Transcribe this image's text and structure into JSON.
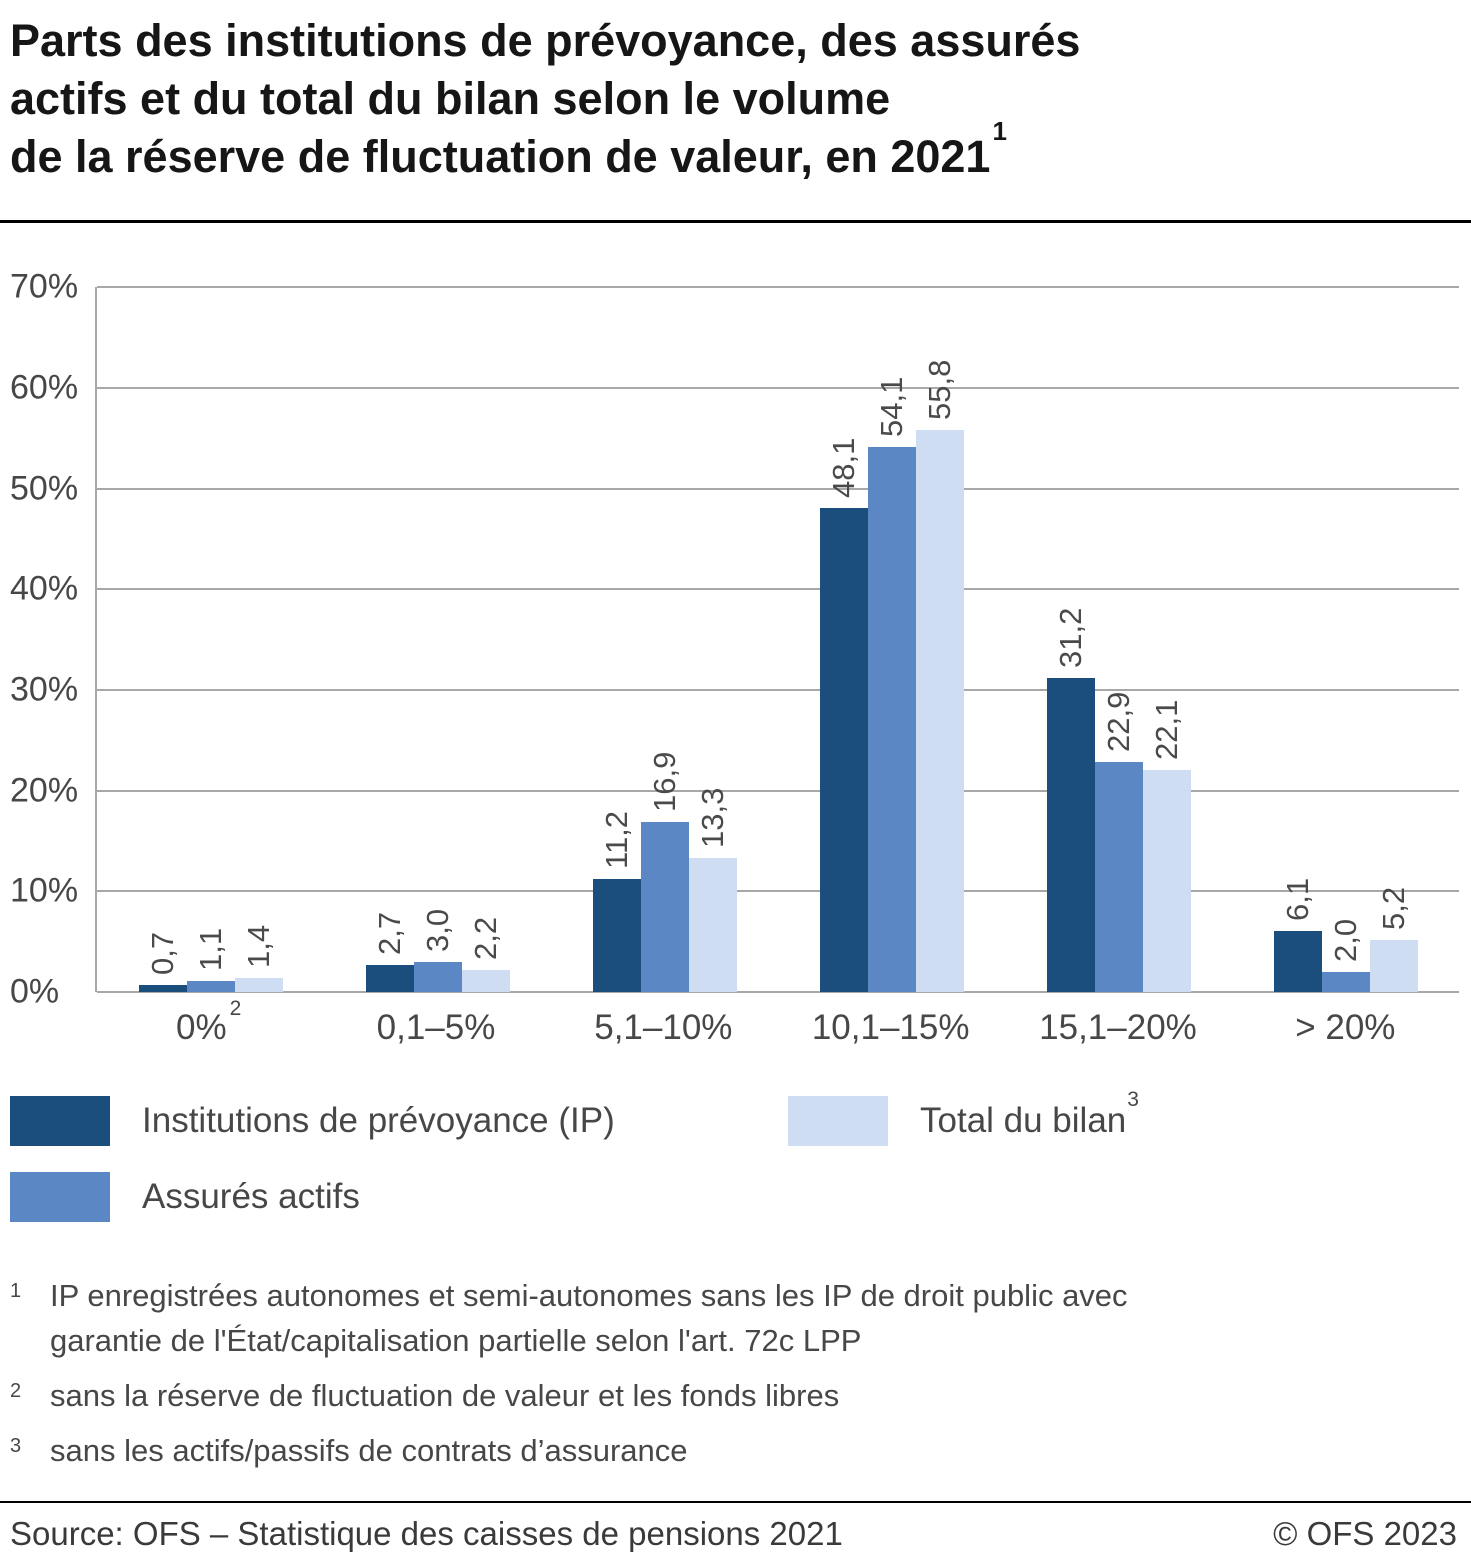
{
  "title": {
    "lines": [
      "Parts des institutions de prévoyance, des assurés",
      "actifs et du total du bilan selon le volume",
      "de la réserve de fluctuation de valeur, en 2021"
    ],
    "superscript": "1"
  },
  "chart_data": {
    "type": "bar",
    "categories": [
      {
        "label": "0%",
        "sup": "2"
      },
      {
        "label": "0,1–5%",
        "sup": ""
      },
      {
        "label": "5,1–10%",
        "sup": ""
      },
      {
        "label": "10,1–15%",
        "sup": ""
      },
      {
        "label": "15,1–20%",
        "sup": ""
      },
      {
        "label": "> 20%",
        "sup": ""
      }
    ],
    "series": [
      {
        "name": "Institutions de prévoyance (IP)",
        "sup": "",
        "color": "#1c4e7d",
        "values": [
          0.7,
          2.7,
          11.2,
          48.1,
          31.2,
          6.1
        ],
        "labels": [
          "0,7",
          "2,7",
          "11,2",
          "48,1",
          "31,2",
          "6,1"
        ]
      },
      {
        "name": "Assurés actifs",
        "sup": "",
        "color": "#5b87c5",
        "values": [
          1.1,
          3.0,
          16.9,
          54.1,
          22.9,
          2.0
        ],
        "labels": [
          "1,1",
          "3,0",
          "16,9",
          "54,1",
          "22,9",
          "2,0"
        ]
      },
      {
        "name": "Total du bilan",
        "sup": "3",
        "color": "#cfddf2",
        "values": [
          1.4,
          2.2,
          13.3,
          55.8,
          22.1,
          5.2
        ],
        "labels": [
          "1,4",
          "2,2",
          "13,3",
          "55,8",
          "22,1",
          "5,2"
        ]
      }
    ],
    "ylim": [
      0,
      70
    ],
    "ytick_step": 10,
    "ytick_suffix": "%",
    "grid": true,
    "legend_position": "bottom",
    "xlabel": "",
    "ylabel": ""
  },
  "footnotes": [
    {
      "marker": "1",
      "text": "IP enregistrées autonomes et semi-autonomes sans les IP de droit public avec garantie de l'État/capitalisation partielle selon l'art. 72c LPP"
    },
    {
      "marker": "2",
      "text": "sans la réserve de fluctuation de valeur et les fonds libres"
    },
    {
      "marker": "3",
      "text": "sans les actifs/passifs de contrats d’assurance"
    }
  ],
  "footer": {
    "source": "Source: OFS – Statistique des caisses de pensions 2021",
    "copyright": "© OFS 2023"
  }
}
